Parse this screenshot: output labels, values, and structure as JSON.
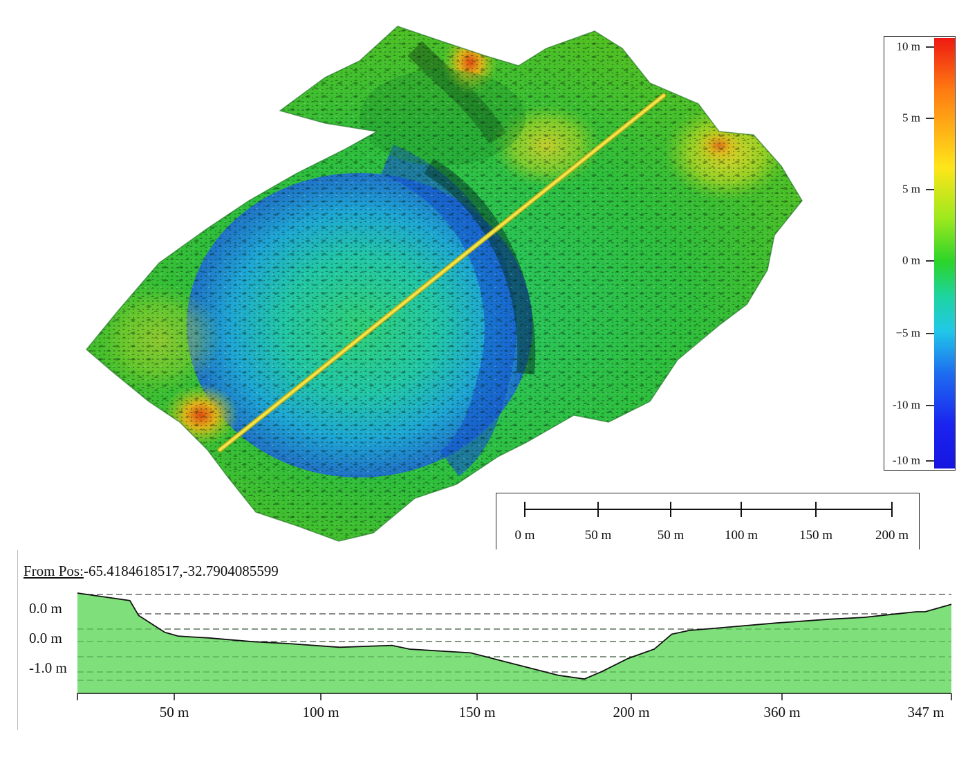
{
  "legend": {
    "labels": [
      "10 m",
      "5 m",
      "5 m",
      "0 m",
      "−5 m",
      "-10 m",
      "-10 m"
    ],
    "colors_top_to_bottom": [
      "#ee1a12",
      "#ff7a12",
      "#ffe51a",
      "#9ce81e",
      "#2bd42a",
      "#21c8e8",
      "#1e6cf0",
      "#1a23ef"
    ]
  },
  "scale_bar": {
    "labels": [
      "0 m",
      "50 m",
      "50 m",
      "100 m",
      "150 m",
      "200 m"
    ]
  },
  "map": {
    "transect_color": "#e8df3a",
    "shading": "hillshaded elevation color relief"
  },
  "profile": {
    "from_pos_label": "From Pos:",
    "from_pos_value": "-65.4184618517,-32.7904085599",
    "y_labels": [
      "0.0 m",
      "0.0 m",
      "-1.0 m"
    ],
    "x_labels": [
      "50 m",
      "100 m",
      "150 m",
      "200 m",
      "360 m",
      "347 m"
    ],
    "fill_color": "#7fe07b"
  },
  "chart_data": {
    "type": "area",
    "title": "",
    "xlabel": "",
    "ylabel": "",
    "x_tick_labels": [
      "50 m",
      "100 m",
      "150 m",
      "200 m",
      "360 m",
      "347 m"
    ],
    "y_tick_labels": [
      "0.0 m",
      "0.0 m",
      "-1.0 m"
    ],
    "grid": "dashed horizontal",
    "series": [
      {
        "x": [
          0,
          0.06,
          0.07,
          0.09,
          0.1,
          0.115,
          0.13,
          0.15,
          0.2,
          0.24,
          0.3,
          0.36,
          0.38,
          0.45,
          0.5,
          0.55,
          0.58,
          0.6,
          0.63,
          0.66,
          0.68,
          0.7,
          0.75,
          0.8,
          0.86,
          0.9,
          0.94,
          0.96,
          0.97,
          1.0
        ],
        "y": [
          0.0,
          -0.04,
          -0.12,
          -0.18,
          -0.21,
          -0.23,
          -0.235,
          -0.24,
          -0.26,
          -0.27,
          -0.29,
          -0.28,
          -0.3,
          -0.32,
          -0.38,
          -0.44,
          -0.46,
          -0.42,
          -0.35,
          -0.3,
          -0.22,
          -0.2,
          -0.18,
          -0.16,
          -0.14,
          -0.13,
          -0.11,
          -0.1,
          -0.1,
          -0.06
        ]
      }
    ]
  }
}
